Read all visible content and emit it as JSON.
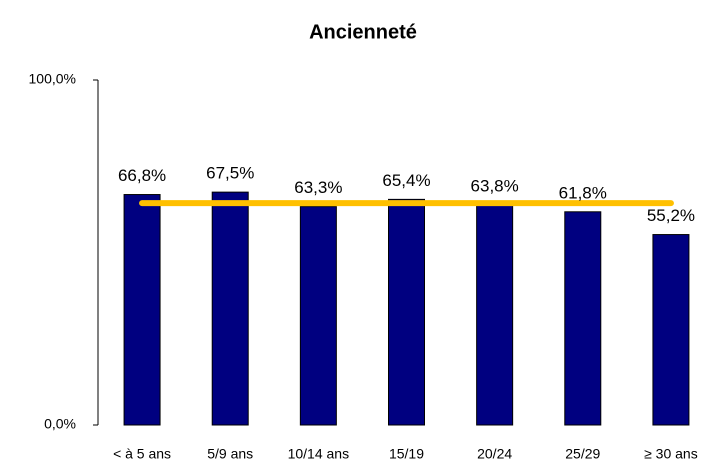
{
  "chart_data": {
    "type": "bar",
    "title": "Ancienneté",
    "categories": [
      "< à 5 ans",
      "5/9 ans",
      "10/14 ans",
      "15/19",
      "20/24",
      "25/29",
      "≥ 30 ans"
    ],
    "values": [
      66.8,
      67.5,
      63.3,
      65.4,
      63.8,
      61.8,
      55.2
    ],
    "value_labels": [
      "66,8%",
      "67,5%",
      "63,3%",
      "65,4%",
      "63,8%",
      "61,8%",
      "55,2%"
    ],
    "color": "#000080",
    "average": {
      "value": 64.3,
      "color": "#ffc000"
    },
    "ylim": [
      0,
      100
    ],
    "yticks": [
      {
        "value": 0,
        "label": "0,0%"
      },
      {
        "value": 100,
        "label": "100,0%"
      }
    ],
    "grid": false
  }
}
